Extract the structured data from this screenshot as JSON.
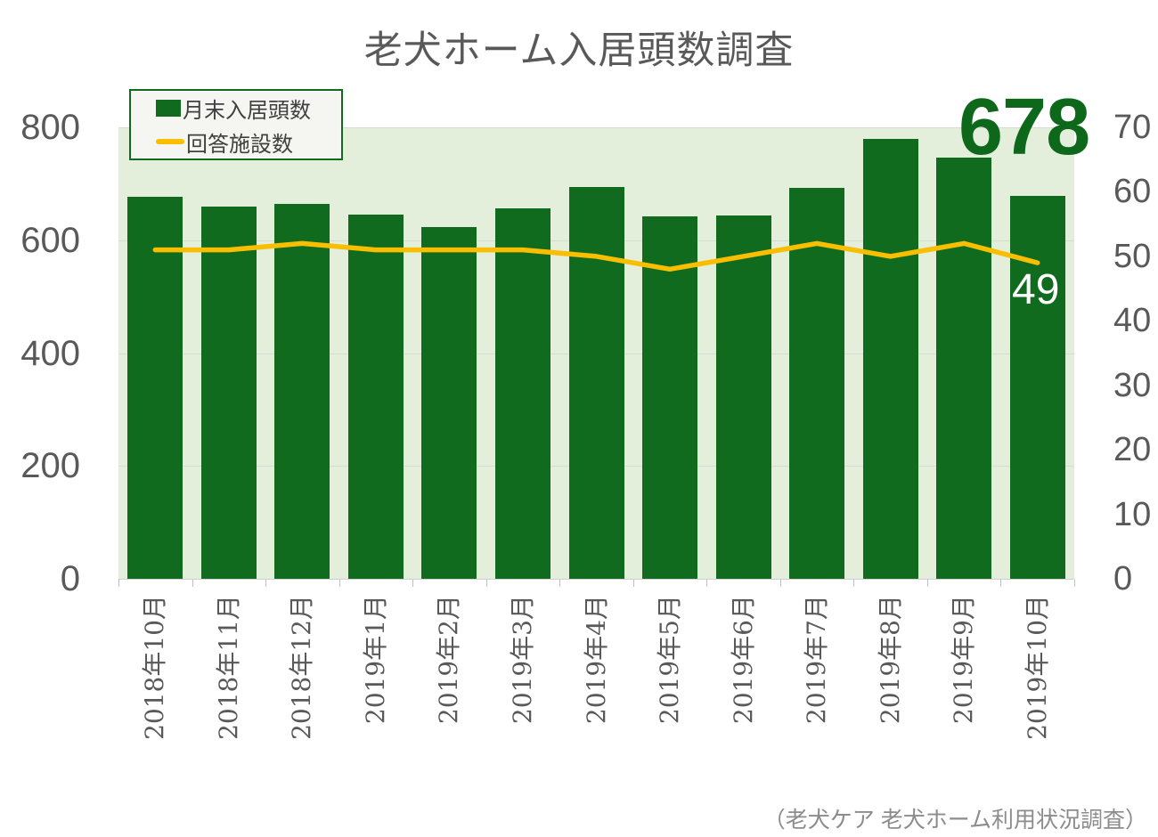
{
  "title": "老犬ホーム入居頭数調査",
  "legend": {
    "items": [
      {
        "label": "月末入居頭数",
        "type": "bar",
        "color": "#106b1e"
      },
      {
        "label": "回答施設数",
        "type": "line",
        "color": "#f9be00"
      }
    ]
  },
  "annotations": {
    "latest_bar_value": "678",
    "latest_line_value": "49"
  },
  "caption": "（老犬ケア 老犬ホーム利用状況調査）",
  "colors": {
    "bar_green": "#106b1e",
    "line_gold": "#f9be00",
    "plot_background": "#e4efdb",
    "gridline": "#d6ddd0",
    "axis_text": "#595959",
    "annotation_green": "#0e681c",
    "annotation_white": "#ffffff",
    "caption_gray": "#8c8c8c"
  },
  "chart_data": {
    "type": "bar",
    "subtype": "bar-and-line-combo",
    "title": "老犬ホーム入居頭数調査",
    "categories": [
      "2018年10月",
      "2018年11月",
      "2018年12月",
      "2019年1月",
      "2019年2月",
      "2019年3月",
      "2019年4月",
      "2019年5月",
      "2019年6月",
      "2019年7月",
      "2019年8月",
      "2019年9月",
      "2019年10月"
    ],
    "series": [
      {
        "name": "月末入居頭数",
        "type": "bar",
        "axis": "left",
        "color": "#106b1e",
        "values": [
          677,
          659,
          664,
          646,
          624,
          657,
          695,
          642,
          644,
          693,
          780,
          747,
          678
        ]
      },
      {
        "name": "回答施設数",
        "type": "line",
        "axis": "right",
        "color": "#f9be00",
        "values": [
          51,
          51,
          52,
          51,
          51,
          51,
          50,
          48,
          50,
          52,
          50,
          52,
          49
        ]
      }
    ],
    "left_axis": {
      "min": 0,
      "max": 800,
      "ticks": [
        0,
        200,
        400,
        600,
        800
      ]
    },
    "right_axis": {
      "min": 0,
      "max": 70,
      "ticks": [
        0,
        10,
        20,
        30,
        40,
        50,
        60,
        70
      ]
    },
    "grid": "horizontal",
    "legend_position": "top-left",
    "data_labels": {
      "last_bar": "678",
      "last_line_point": "49"
    }
  }
}
